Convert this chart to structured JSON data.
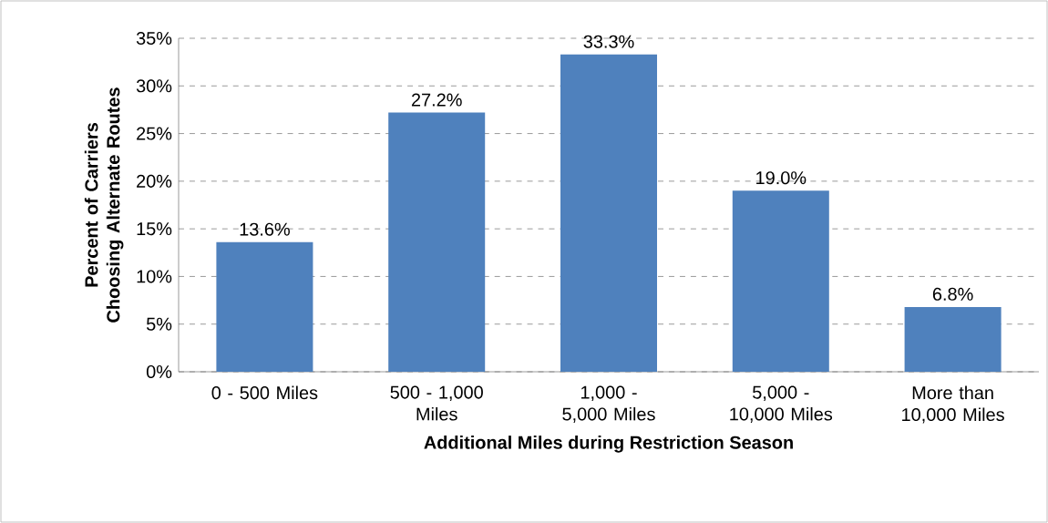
{
  "chart_data": {
    "type": "bar",
    "xlabel": "Additional Miles during Restriction Season",
    "ylabel": "Percent of Carriers Choosing Alternate Routes",
    "categories": [
      "0 - 500 Miles",
      "500 - 1,000 Miles",
      "1,000 - 5,000 Miles",
      "5,000 - 10,000 Miles",
      "More than 10,000 Miles"
    ],
    "values": [
      13.6,
      27.2,
      33.3,
      19.0,
      6.8
    ],
    "value_labels": [
      "13.6%",
      "27.2%",
      "33.3%",
      "19.0%",
      "6.8%"
    ],
    "color": "#4f81bd",
    "ylim": [
      0,
      35
    ],
    "yticks": [
      {
        "value": 0,
        "label": "0%"
      },
      {
        "value": 5,
        "label": "5%"
      },
      {
        "value": 10,
        "label": "10%"
      },
      {
        "value": 15,
        "label": "15%"
      },
      {
        "value": 20,
        "label": "20%"
      },
      {
        "value": 25,
        "label": "25%"
      },
      {
        "value": 30,
        "label": "30%"
      },
      {
        "value": 35,
        "label": "35%"
      }
    ],
    "grid": "y"
  }
}
